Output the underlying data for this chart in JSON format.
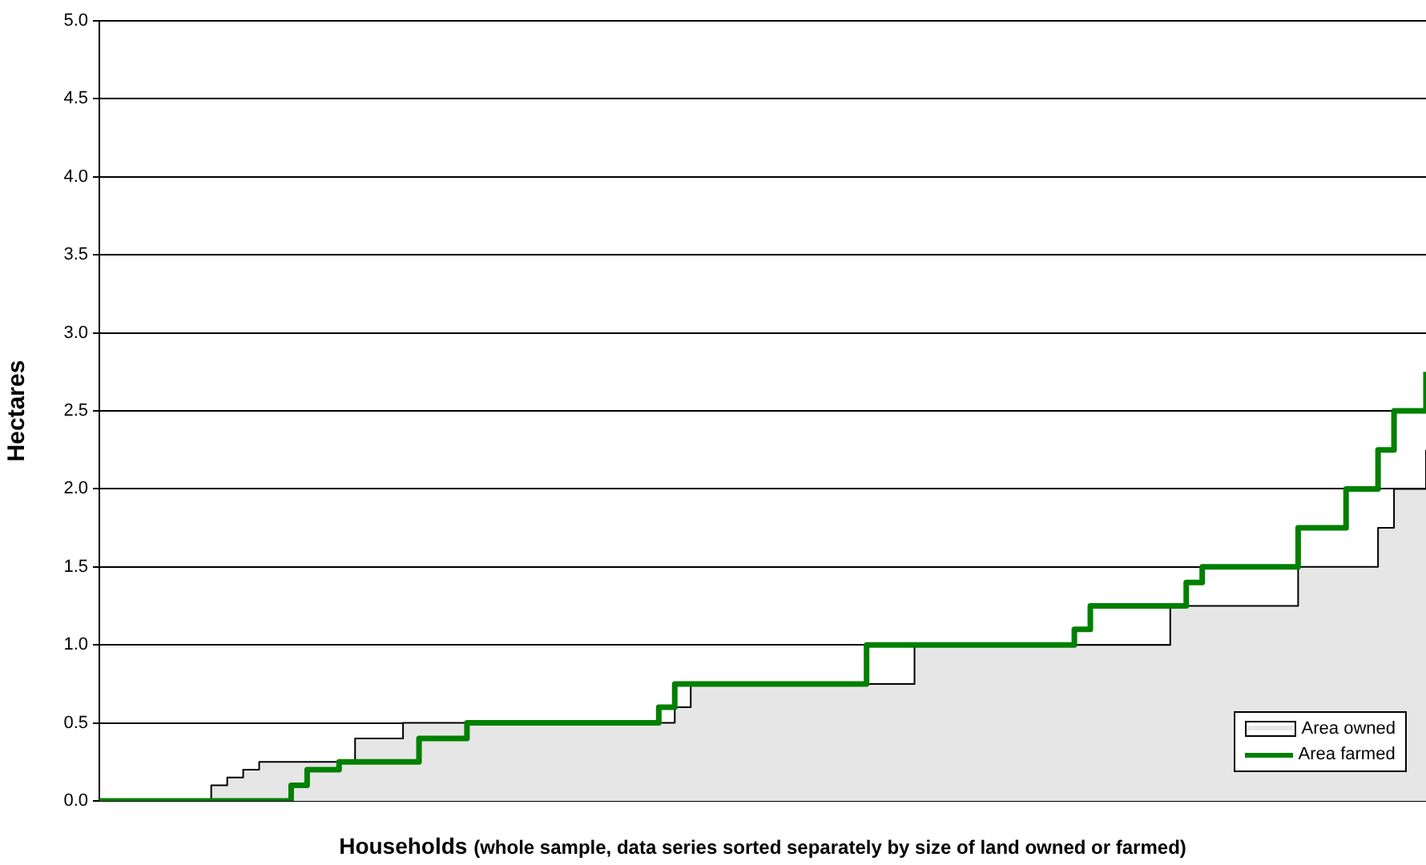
{
  "chart_data": {
    "type": "area",
    "xlabel": "Households (whole sample, data series sorted separately by size of land owned or farmed)",
    "ylabel": "Hectares",
    "categories": [
      null,
      null,
      null,
      null,
      null,
      null,
      null,
      null,
      null,
      null,
      null,
      null,
      null,
      null,
      null,
      null,
      null,
      null,
      null,
      null,
      null,
      null,
      null,
      null,
      null,
      null,
      null,
      null,
      null,
      null,
      null,
      null,
      null,
      null,
      null,
      null,
      null,
      null,
      null,
      null,
      null,
      null,
      null,
      null,
      null,
      null,
      null,
      null,
      null,
      null,
      null,
      null,
      null,
      null,
      null,
      null,
      null,
      null,
      null,
      null,
      null,
      null,
      null,
      null,
      null,
      null,
      null,
      null,
      null,
      null,
      null,
      null,
      null,
      null,
      null,
      null,
      null,
      null,
      null,
      null,
      null,
      null,
      null,
      null
    ],
    "series": [
      {
        "name": "Area owned",
        "color": "#e6e6e6",
        "values": [
          0,
          0,
          0,
          0,
          0,
          0,
          0,
          0.1,
          0.15,
          0.2,
          0.25,
          0.25,
          0.25,
          0.25,
          0.25,
          0.25,
          0.4,
          0.4,
          0.4,
          0.5,
          0.5,
          0.5,
          0.5,
          0.5,
          0.5,
          0.5,
          0.5,
          0.5,
          0.5,
          0.5,
          0.5,
          0.5,
          0.5,
          0.5,
          0.5,
          0.5,
          0.6,
          0.75,
          0.75,
          0.75,
          0.75,
          0.75,
          0.75,
          0.75,
          0.75,
          0.75,
          0.75,
          0.75,
          0.75,
          0.75,
          0.75,
          1,
          1,
          1,
          1,
          1,
          1,
          1,
          1,
          1,
          1,
          1,
          1,
          1,
          1,
          1,
          1,
          1.25,
          1.25,
          1.25,
          1.25,
          1.25,
          1.25,
          1.25,
          1.25,
          1.5,
          1.5,
          1.5,
          1.5,
          1.5,
          1.75,
          2,
          2,
          2.25
        ]
      },
      {
        "name": "Area farmed",
        "type": "step",
        "color": "#008000",
        "values": [
          0,
          0,
          0,
          0,
          0,
          0,
          0,
          0,
          0,
          0,
          0,
          0,
          0.1,
          0.2,
          0.2,
          0.25,
          0.25,
          0.25,
          0.25,
          0.25,
          0.4,
          0.4,
          0.4,
          0.5,
          0.5,
          0.5,
          0.5,
          0.5,
          0.5,
          0.5,
          0.5,
          0.5,
          0.5,
          0.5,
          0.5,
          0.6,
          0.75,
          0.75,
          0.75,
          0.75,
          0.75,
          0.75,
          0.75,
          0.75,
          0.75,
          0.75,
          0.75,
          0.75,
          1,
          1,
          1,
          1,
          1,
          1,
          1,
          1,
          1,
          1,
          1,
          1,
          1,
          1.1,
          1.25,
          1.25,
          1.25,
          1.25,
          1.25,
          1.25,
          1.4,
          1.5,
          1.5,
          1.5,
          1.5,
          1.5,
          1.5,
          1.75,
          1.75,
          1.75,
          2,
          2,
          2.25,
          2.5,
          2.5,
          2.75
        ]
      }
    ],
    "ylim": [
      0,
      5
    ],
    "yticks": [
      {
        "value": 0,
        "label": "0.0"
      },
      0.5,
      {
        "value": 1,
        "label": "1.0"
      },
      1.5,
      {
        "value": 2,
        "label": "2.0"
      },
      2.5,
      {
        "value": 3,
        "label": "3.0"
      },
      3.5,
      {
        "value": 4,
        "label": "4.0"
      },
      4.5,
      {
        "value": 5,
        "label": "5.0"
      }
    ],
    "grid": "y",
    "legend": "bottom right",
    "tick_labels": "y"
  }
}
